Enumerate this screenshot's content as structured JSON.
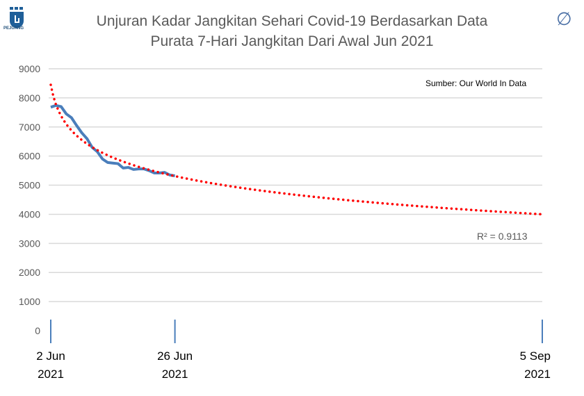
{
  "logo_text": "PEJUANG",
  "corner_icon": "empty-set-icon",
  "chart_data": {
    "type": "line",
    "title_lines": [
      "Unjuran Kadar Jangkitan Sehari Covid-19 Berdasarkan Data",
      "Purata 7-Hari Jangkitan Dari Awal Jun 2021"
    ],
    "annotation": "Sumber: Our World In Data",
    "r_squared_label": "R² = 0.9113",
    "ylim": [
      0,
      9000
    ],
    "yticks": [
      "0",
      "1000",
      "2000",
      "3000",
      "4000",
      "5000",
      "6000",
      "7000",
      "8000",
      "9000"
    ],
    "xlim_days_from_2_jun": [
      0,
      95
    ],
    "xticks": [
      {
        "day": 0,
        "line1": "2 Jun",
        "line2": "2021"
      },
      {
        "day": 24,
        "line1": "26 Jun",
        "line2": "2021"
      },
      {
        "day": 95,
        "line1": "5 Sep",
        "line2": "2021"
      }
    ],
    "grid": true,
    "series": [
      {
        "type": "line",
        "color": "#4a7ebb",
        "x_start": "2 Jun 2021",
        "values": [
          7680,
          7740,
          7700,
          7450,
          7320,
          7050,
          6800,
          6600,
          6300,
          6150,
          5900,
          5780,
          5760,
          5740,
          5590,
          5610,
          5540,
          5560,
          5560,
          5500,
          5420,
          5420,
          5440,
          5350,
          5320
        ]
      }
    ],
    "trendline": {
      "type": "logarithmic",
      "color": "#ff0000",
      "style": "dotted",
      "start_value": 8450,
      "end_value": 4000,
      "end": "5 Sep 2021"
    }
  }
}
